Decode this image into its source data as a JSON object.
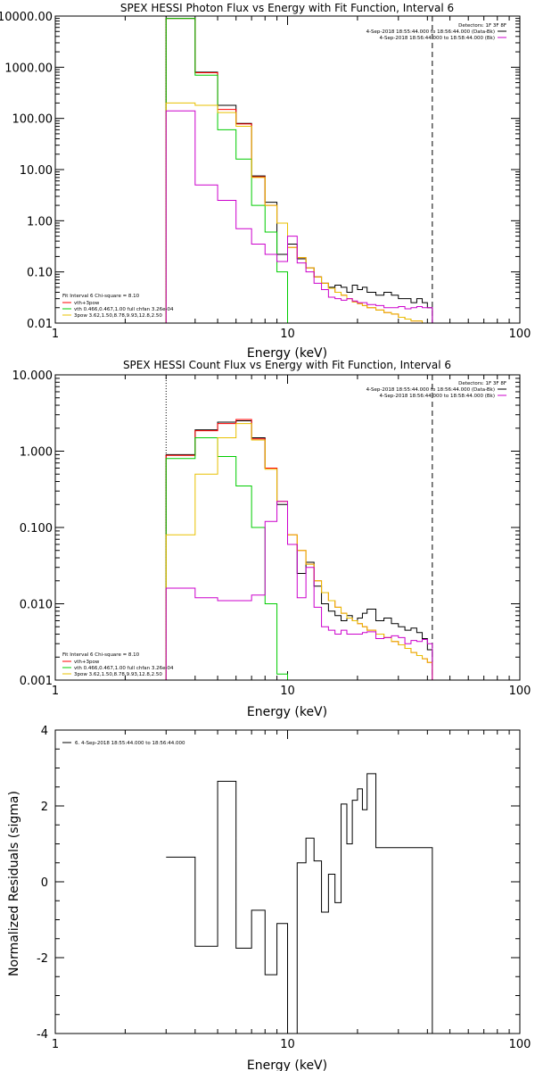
{
  "chart_data": [
    {
      "type": "line",
      "title": "SPEX HESSI Photon Flux vs Energy with Fit Function, Interval 6",
      "xlabel": "Energy (keV)",
      "ylabel": "",
      "xscale": "log",
      "yscale": "log",
      "xlim": [
        1,
        100
      ],
      "ylim": [
        0.01,
        10000
      ],
      "x_ticks": [
        "1",
        "10",
        "100"
      ],
      "y_ticks": [
        "0.01",
        "0.10",
        "1.00",
        "10.00",
        "100.00",
        "1000.00",
        "10000.00"
      ],
      "bin_edges": [
        3.0,
        4.0,
        5.0,
        6.0,
        7.0,
        8.0,
        9.0,
        10.0,
        11.0,
        12.0,
        13.0,
        14.0,
        15.0,
        16.0,
        17.0,
        18.0,
        19.0,
        20.0,
        21.0,
        22.0,
        24.0,
        26.0,
        28.0,
        30.0,
        32.0,
        34.0,
        36.0,
        38.0,
        40.0,
        42.0
      ],
      "series": [
        {
          "name": "",
          "color": "#000000",
          "values": [
            9000,
            800,
            180,
            80,
            7.5,
            2.3,
            0.22,
            0.35,
            0.18,
            0.12,
            0.08,
            0.06,
            0.05,
            0.055,
            0.05,
            0.04,
            0.055,
            0.045,
            0.05,
            0.04,
            0.035,
            0.04,
            0.035,
            0.03,
            0.03,
            0.025,
            0.03,
            0.025,
            0.02
          ]
        },
        {
          "name": "vth+3pow",
          "color": "#ff0000",
          "values": [
            9000,
            780,
            150,
            78,
            7.2,
            2.0,
            0.9,
            0.3,
            0.19,
            0.12,
            0.08,
            0.06,
            0.048,
            0.04,
            0.035,
            0.03,
            0.026,
            0.024,
            0.022,
            0.02,
            0.018,
            0.016,
            0.015,
            0.013,
            0.012,
            0.011,
            0.011,
            0.01,
            0.01
          ]
        },
        {
          "name": "vth 0.466,0.467,1.00  full chfan 3.26e-04",
          "color": "#00cc00",
          "values": [
            9000,
            700,
            60,
            16,
            2.0,
            0.6,
            0.1,
            0.01,
            0.01,
            0.01,
            0.01,
            0.01,
            0.01,
            0.01,
            0.01,
            0.01,
            0.01,
            0.01,
            0.01,
            0.01,
            0.01,
            0.01,
            0.01,
            0.01,
            0.01,
            0.01,
            0.01,
            0.01,
            0.01
          ]
        },
        {
          "name": "3pow 3.62,1.50,8.78,9.93,12.8,2.50",
          "color": "#e8c000",
          "values": [
            200,
            180,
            130,
            70,
            7.0,
            2.0,
            0.9,
            0.3,
            0.19,
            0.12,
            0.08,
            0.06,
            0.048,
            0.04,
            0.035,
            0.03,
            0.026,
            0.024,
            0.022,
            0.02,
            0.018,
            0.016,
            0.015,
            0.013,
            0.012,
            0.011,
            0.011,
            0.01,
            0.01
          ]
        },
        {
          "name": "",
          "color": "#cc00cc",
          "values": [
            140,
            5,
            2.5,
            0.7,
            0.35,
            0.22,
            0.16,
            0.5,
            0.15,
            0.1,
            0.06,
            0.045,
            0.032,
            0.03,
            0.028,
            0.03,
            0.027,
            0.025,
            0.025,
            0.023,
            0.022,
            0.02,
            0.02,
            0.021,
            0.019,
            0.02,
            0.021,
            0.02,
            0.02
          ]
        }
      ],
      "dotted_x": 3,
      "dashed_x": 42,
      "legend_top_right": [
        "Detectors: 1F 3F 8F",
        "4-Sep-2018 18:55:44.000 to 18:56:44.000 (Data-Bk)",
        "4-Sep-2018 18:56:44.000 to 18:58:44.000 (Bk)"
      ],
      "legend_top_right_colors": [
        "",
        "#000000",
        "#cc00cc"
      ],
      "legend_bottom_left": "Fit Interval 6   Chi-square = 8.10"
    },
    {
      "type": "line",
      "title": "SPEX HESSI Count Flux vs Energy with Fit Function, Interval 6",
      "xlabel": "Energy (keV)",
      "ylabel": "",
      "xscale": "log",
      "yscale": "log",
      "xlim": [
        1,
        100
      ],
      "ylim": [
        0.001,
        10
      ],
      "x_ticks": [
        "1",
        "10",
        "100"
      ],
      "y_ticks": [
        "0.001",
        "0.010",
        "0.100",
        "1.000",
        "10.000"
      ],
      "bin_edges": [
        3.0,
        4.0,
        5.0,
        6.0,
        7.0,
        8.0,
        9.0,
        10.0,
        11.0,
        12.0,
        13.0,
        14.0,
        15.0,
        16.0,
        17.0,
        18.0,
        19.0,
        20.0,
        21.0,
        22.0,
        24.0,
        26.0,
        28.0,
        30.0,
        32.0,
        34.0,
        36.0,
        38.0,
        40.0,
        42.0
      ],
      "series": [
        {
          "name": "",
          "color": "#000000",
          "values": [
            0.9,
            1.9,
            2.4,
            2.5,
            1.5,
            0.6,
            0.2,
            0.06,
            0.025,
            0.035,
            0.017,
            0.01,
            0.008,
            0.007,
            0.006,
            0.007,
            0.006,
            0.0065,
            0.0075,
            0.0085,
            0.006,
            0.0065,
            0.0055,
            0.005,
            0.0045,
            0.0048,
            0.0042,
            0.0035,
            0.0025
          ]
        },
        {
          "name": "vth+3pow",
          "color": "#ff0000",
          "values": [
            0.88,
            1.85,
            2.3,
            2.6,
            1.45,
            0.6,
            0.22,
            0.08,
            0.05,
            0.033,
            0.02,
            0.014,
            0.011,
            0.009,
            0.0075,
            0.0065,
            0.006,
            0.0055,
            0.005,
            0.0045,
            0.004,
            0.0036,
            0.0032,
            0.0029,
            0.0026,
            0.0023,
            0.0021,
            0.0019,
            0.0017
          ]
        },
        {
          "name": "vth 0.466,0.467,1.00  full chfan 3.26e-04",
          "color": "#00cc00",
          "values": [
            0.8,
            1.5,
            0.85,
            0.35,
            0.1,
            0.01,
            0.0012,
            0.001,
            0.001,
            0.001,
            0.001,
            0.001,
            0.001,
            0.001,
            0.001,
            0.001,
            0.001,
            0.001,
            0.001,
            0.001,
            0.001,
            0.001,
            0.001,
            0.001,
            0.001,
            0.001,
            0.001,
            0.001,
            0.001
          ]
        },
        {
          "name": "3pow 3.62,1.50,8.78,9.93,12.8,2.50",
          "color": "#e8c000",
          "values": [
            0.08,
            0.5,
            1.5,
            2.3,
            1.4,
            0.58,
            0.22,
            0.08,
            0.05,
            0.033,
            0.02,
            0.014,
            0.011,
            0.009,
            0.0075,
            0.0065,
            0.006,
            0.0055,
            0.005,
            0.0045,
            0.004,
            0.0036,
            0.0032,
            0.0029,
            0.0026,
            0.0023,
            0.0021,
            0.0019,
            0.0017
          ]
        },
        {
          "name": "",
          "color": "#cc00cc",
          "values": [
            0.016,
            0.012,
            0.011,
            0.011,
            0.013,
            0.12,
            0.22,
            0.06,
            0.012,
            0.03,
            0.009,
            0.005,
            0.0045,
            0.004,
            0.0045,
            0.004,
            0.004,
            0.004,
            0.0042,
            0.0043,
            0.0035,
            0.0036,
            0.0038,
            0.0036,
            0.003,
            0.0033,
            0.0032,
            0.0034,
            0.003
          ]
        }
      ],
      "dotted_x": 3,
      "dashed_x": 42,
      "legend_top_right": [
        "Detectors: 1F 3F 8F",
        "4-Sep-2018 18:55:44.000 to 18:56:44.000 (Data-Bk)",
        "4-Sep-2018 18:56:44.000 to 18:58:44.000 (Bk)"
      ],
      "legend_top_right_colors": [
        "",
        "#000000",
        "#cc00cc"
      ],
      "legend_bottom_left": "Fit Interval 6   Chi-square = 8.10"
    },
    {
      "type": "line",
      "title": "",
      "xlabel": "Energy (keV)",
      "ylabel": "Normalized Residuals (sigma)",
      "xscale": "log",
      "yscale": "linear",
      "xlim": [
        1,
        100
      ],
      "ylim": [
        -4,
        4
      ],
      "x_ticks": [
        "1",
        "10",
        "100"
      ],
      "y_ticks": [
        "-4",
        "-2",
        "0",
        "2",
        "4"
      ],
      "bin_edges": [
        3.0,
        4.0,
        5.0,
        6.0,
        7.0,
        8.0,
        9.0,
        10.0,
        11.0,
        12.0,
        13.0,
        14.0,
        15.0,
        16.0,
        17.0,
        18.0,
        19.0,
        20.0,
        21.0,
        22.0,
        24.0,
        26.0,
        28.0,
        30.0,
        32.0,
        34.0,
        36.0,
        38.0,
        40.0,
        42.0
      ],
      "series": [
        {
          "name": "6.  4-Sep-2018 18:55:44.000 to 18:56:44.000",
          "color": "#000000",
          "values": [
            0.65,
            -1.7,
            2.65,
            -1.75,
            -0.75,
            -2.45,
            -1.1,
            -4.0,
            0.5,
            1.15,
            0.55,
            -0.8,
            0.2,
            -0.55,
            2.05,
            1.0,
            2.15,
            2.45,
            1.9,
            2.85,
            0.9,
            0.9,
            0.9,
            0.9,
            0.9,
            0.9,
            0.9,
            0.9,
            0.9
          ]
        }
      ]
    }
  ]
}
